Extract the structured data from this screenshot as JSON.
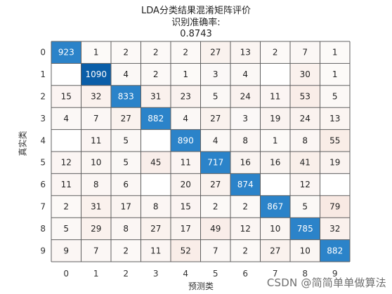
{
  "chart_data": {
    "type": "heatmap",
    "title_lines": [
      "LDA分类结果混淆矩阵评价",
      "识别准确率:",
      "0.8743"
    ],
    "xlabel": "预测类",
    "ylabel": "真实类",
    "x_categories": [
      "0",
      "1",
      "2",
      "3",
      "4",
      "5",
      "6",
      "7",
      "8",
      "9"
    ],
    "y_categories": [
      "0",
      "1",
      "2",
      "3",
      "4",
      "5",
      "6",
      "7",
      "8",
      "9"
    ],
    "values": [
      [
        923,
        1,
        2,
        2,
        2,
        27,
        13,
        2,
        7,
        1
      ],
      [
        null,
        1090,
        4,
        2,
        1,
        3,
        4,
        null,
        30,
        1
      ],
      [
        15,
        32,
        833,
        31,
        23,
        5,
        24,
        11,
        53,
        5
      ],
      [
        4,
        7,
        27,
        882,
        4,
        27,
        3,
        19,
        24,
        13
      ],
      [
        null,
        11,
        5,
        null,
        890,
        4,
        8,
        1,
        8,
        55
      ],
      [
        12,
        10,
        5,
        45,
        11,
        717,
        16,
        16,
        41,
        19
      ],
      [
        11,
        8,
        6,
        null,
        20,
        27,
        874,
        null,
        12,
        null
      ],
      [
        2,
        31,
        17,
        8,
        15,
        2,
        2,
        867,
        5,
        79
      ],
      [
        5,
        29,
        8,
        27,
        17,
        49,
        12,
        10,
        785,
        32
      ],
      [
        9,
        7,
        2,
        11,
        52,
        7,
        2,
        27,
        10,
        882
      ]
    ],
    "colors": {
      "diagonal": "#2b83c9",
      "diagonal_dark": "#0a5ea8",
      "off_diagonal_light": "#fcfbfa",
      "off_diagonal_tint": "#f8e9e3",
      "grid": "#5f5f5f",
      "text": "#1f1f1f",
      "diagonal_text": "#ffffff"
    }
  },
  "watermark": "CSDN @简简单单做算法"
}
